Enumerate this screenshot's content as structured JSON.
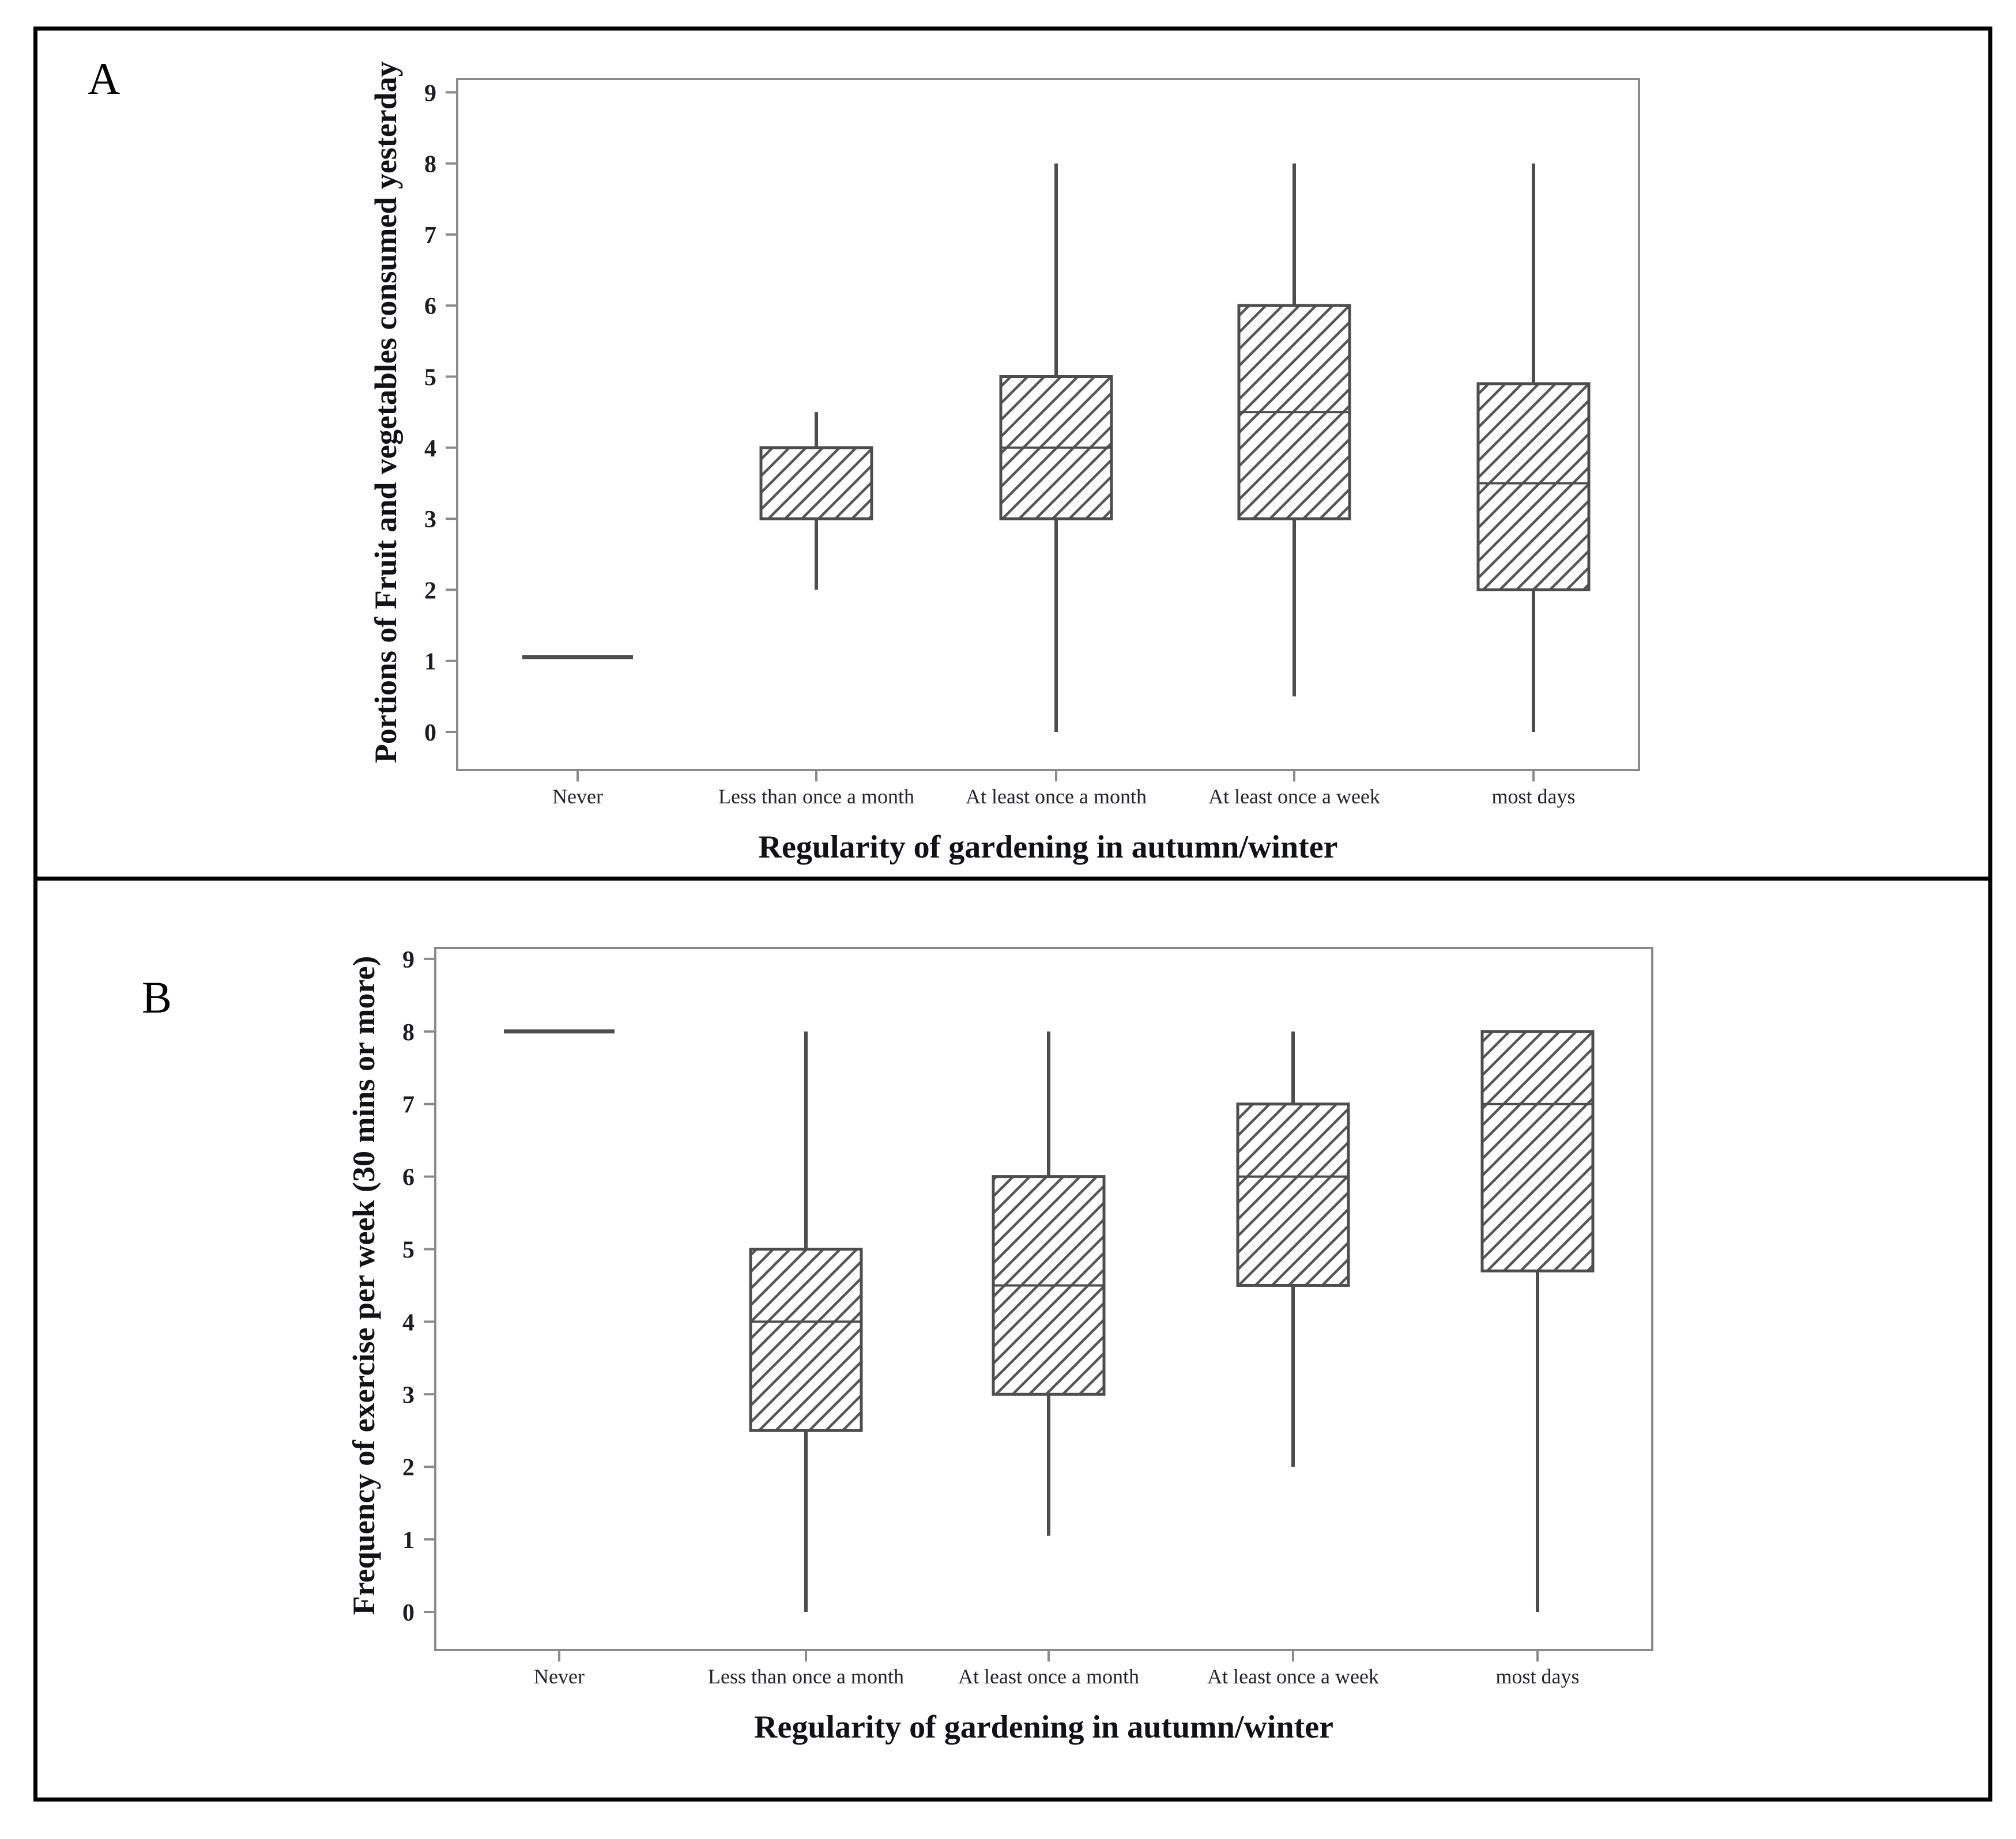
{
  "figure": {
    "panels": [
      {
        "label": "A"
      },
      {
        "label": "B"
      }
    ],
    "colors": {
      "box_stroke": "#4d4d4d",
      "hatch_line": "#555555",
      "frame_gray": "#8a8a8a",
      "tick_text": "#1c1c24",
      "category_text": "#23232d",
      "title_text": "#111118",
      "outer_border": "#000000",
      "background": "#ffffff"
    }
  },
  "chart_data": [
    {
      "type": "boxplot",
      "panel_label": "A",
      "title": "",
      "xlabel": "Regularity of gardening in autumn/winter",
      "ylabel": "Portions of Fruit and vegetables consumed yesterday",
      "ylim": [
        0,
        9
      ],
      "ytick_step": 1,
      "grid": false,
      "hatch": "diagonal-forward",
      "categories": [
        "Never",
        "Less than once a month",
        "At least once a month",
        "At least once a week",
        "most days"
      ],
      "boxes": [
        {
          "category": "Never",
          "median_only": true,
          "median": 1.05
        },
        {
          "category": "Less than once a month",
          "whisker_low": 2,
          "q1": 3,
          "median": 4,
          "q3": 4,
          "whisker_high": 4.5
        },
        {
          "category": "At least once a month",
          "whisker_low": 0,
          "q1": 3,
          "median": 4,
          "q3": 5,
          "whisker_high": 8
        },
        {
          "category": "At least once a week",
          "whisker_low": 0.5,
          "q1": 3,
          "median": 4.5,
          "q3": 6,
          "whisker_high": 8
        },
        {
          "category": "most days",
          "whisker_low": 0,
          "q1": 2,
          "median": 3.5,
          "q3": 4.9,
          "whisker_high": 8
        }
      ]
    },
    {
      "type": "boxplot",
      "panel_label": "B",
      "title": "",
      "xlabel": "Regularity of gardening in autumn/winter",
      "ylabel": "Frequency of exercise per week (30 mins or more)",
      "ylim": [
        0,
        9
      ],
      "ytick_step": 1,
      "grid": false,
      "hatch": "diagonal-forward",
      "categories": [
        "Never",
        "Less than once a month",
        "At least once a month",
        "At least once a week",
        "most days"
      ],
      "boxes": [
        {
          "category": "Never",
          "median_only": true,
          "median": 8
        },
        {
          "category": "Less than once a month",
          "whisker_low": 0,
          "q1": 2.5,
          "median": 4,
          "q3": 5,
          "whisker_high": 8
        },
        {
          "category": "At least once a month",
          "whisker_low": 1.05,
          "q1": 3,
          "median": 4.5,
          "q3": 6,
          "whisker_high": 8
        },
        {
          "category": "At least once a week",
          "whisker_low": 2,
          "q1": 4.5,
          "median": 6,
          "q3": 7,
          "whisker_high": 8
        },
        {
          "category": "most days",
          "whisker_low": 0,
          "q1": 4.7,
          "median": 7,
          "q3": 8,
          "whisker_high": 8
        }
      ]
    }
  ]
}
